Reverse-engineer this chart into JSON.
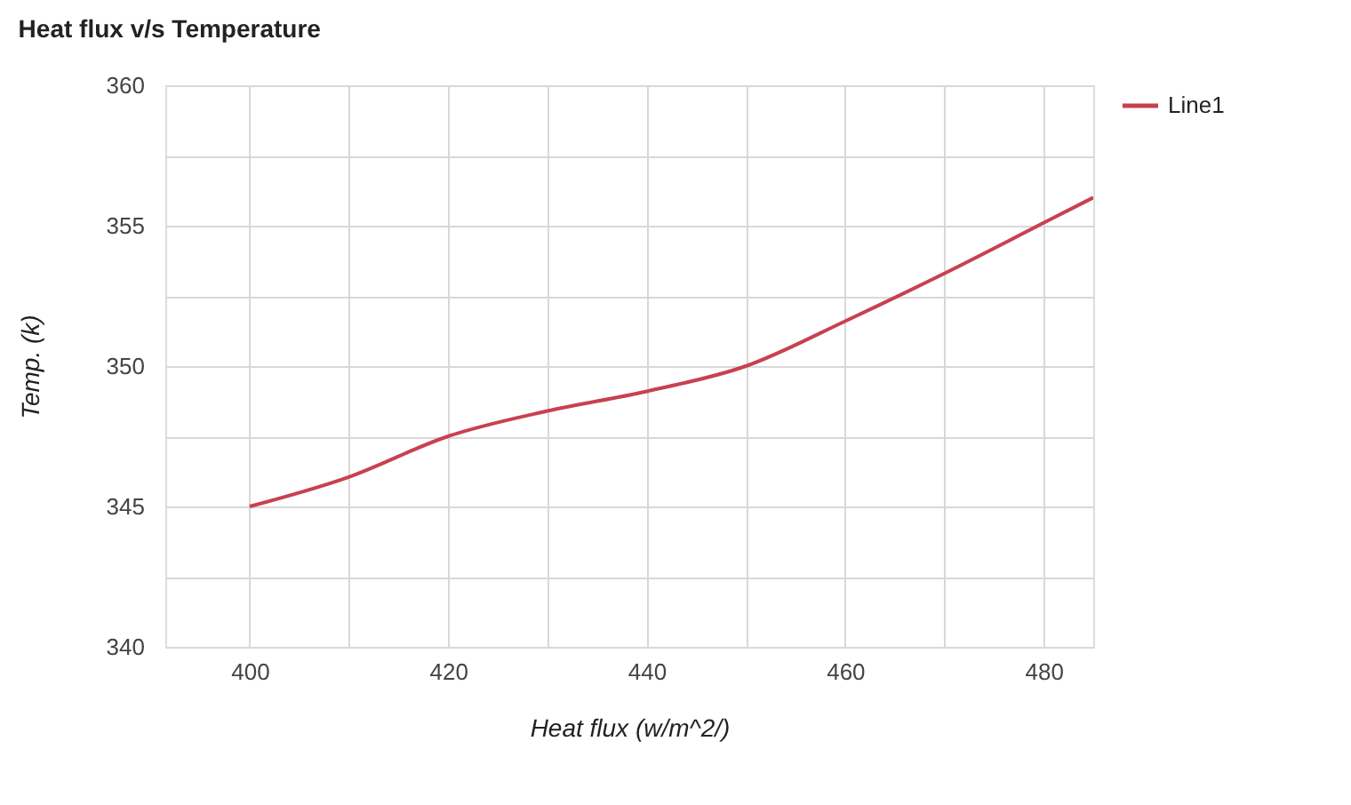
{
  "chart_data": {
    "type": "line",
    "title": "Heat flux v/s Temperature",
    "xlabel": "Heat flux (w/m^2/)",
    "ylabel": "Temp. (k)",
    "x": [
      400,
      410,
      420,
      430,
      440,
      450,
      460,
      470,
      480,
      485
    ],
    "series": [
      {
        "name": "Line1",
        "color": "#c8414f",
        "values": [
          345,
          346.05,
          347.5,
          348.4,
          349.1,
          350,
          351.6,
          353.3,
          355.1,
          356
        ]
      }
    ],
    "xlim": [
      391.5,
      485
    ],
    "ylim": [
      340,
      360
    ],
    "xticks": [
      400,
      {
        "value": 410,
        "label": null
      },
      420,
      {
        "value": 430,
        "label": null
      },
      440,
      {
        "value": 450,
        "label": null
      },
      460,
      {
        "value": 470,
        "label": null
      },
      480
    ],
    "yticks": [
      340,
      {
        "value": 342.5,
        "label": null
      },
      345,
      {
        "value": 347.5,
        "label": null
      },
      350,
      {
        "value": 352.5,
        "label": null
      },
      355,
      {
        "value": 357.5,
        "label": null
      },
      360
    ],
    "grid": true,
    "legend": "top right",
    "marker": "none",
    "line_style": "solid"
  }
}
